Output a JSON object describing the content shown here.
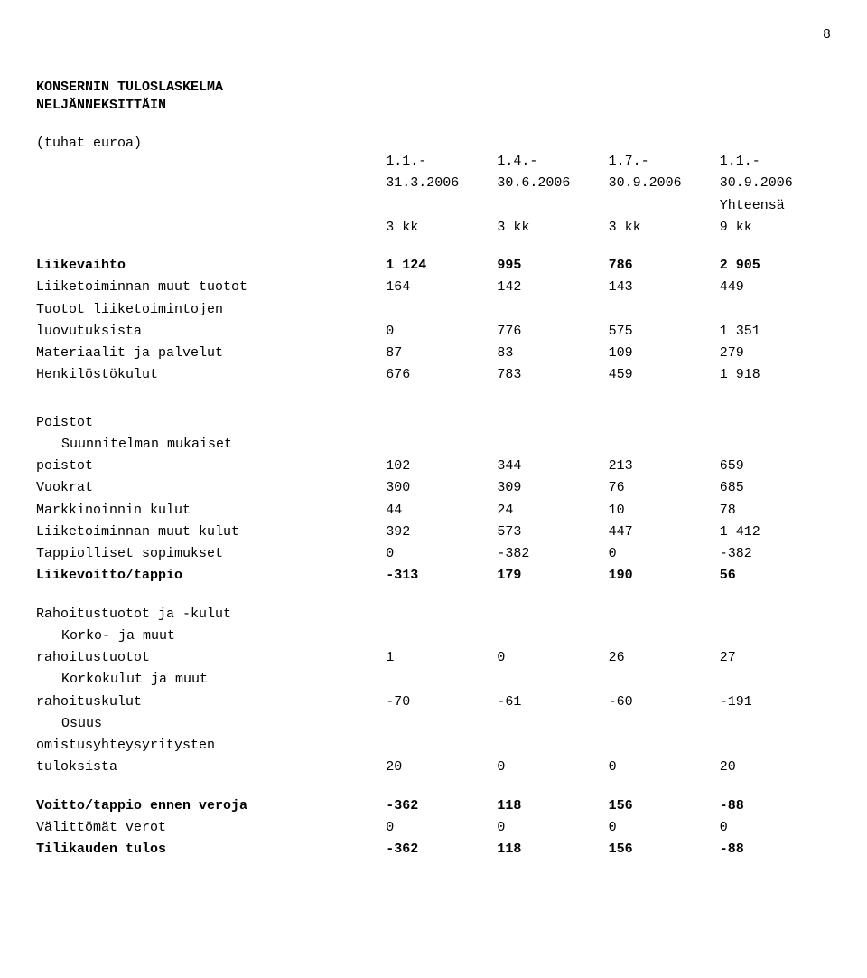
{
  "page_number": "8",
  "title_lines": [
    "KONSERNIN TULOSLASKELMA",
    "NELJÄNNEKSITTÄIN"
  ],
  "unit_label": "(tuhat euroa)",
  "header": {
    "periods_line1": [
      "1.1.-",
      "1.4.-",
      "1.7.-",
      "1.1.-"
    ],
    "periods_line2": [
      "31.3.2006",
      "30.6.2006",
      "30.9.2006",
      "30.9.2006"
    ],
    "total_label": "Yhteensä",
    "kk": [
      "3 kk",
      "3 kk",
      "3 kk",
      "9 kk"
    ]
  },
  "rows": {
    "liikevaihto": {
      "label": "Liikevaihto",
      "v": [
        "1 124",
        "995",
        "786",
        "2 905"
      ],
      "bold": true
    },
    "liiketoiminnan_tuotot": {
      "label": "Liiketoiminnan muut tuotot",
      "v": [
        "164",
        "142",
        "143",
        "449"
      ]
    },
    "tuotot_liiketoimintojen": {
      "label": "Tuotot liiketoimintojen"
    },
    "luovutuksista": {
      "label": "luovutuksista",
      "v": [
        "0",
        "776",
        "575",
        "1 351"
      ]
    },
    "materiaalit": {
      "label": "Materiaalit ja palvelut",
      "v": [
        "87",
        "83",
        "109",
        "279"
      ]
    },
    "henkilostokulut": {
      "label": "Henkilöstökulut",
      "v": [
        "676",
        "783",
        "459",
        "1 918"
      ]
    },
    "poistot": {
      "label": "Poistot"
    },
    "suunnitelman": {
      "label": "Suunnitelman mukaiset",
      "indent": true
    },
    "poistot_val": {
      "label": "poistot",
      "v": [
        "102",
        "344",
        "213",
        "659"
      ]
    },
    "vuokrat": {
      "label": "Vuokrat",
      "v": [
        "300",
        "309",
        "76",
        "685"
      ]
    },
    "markkinoinnin": {
      "label": "Markkinoinnin kulut",
      "v": [
        "44",
        "24",
        "10",
        "78"
      ]
    },
    "liiketoiminnan_kulut": {
      "label": "Liiketoiminnan muut kulut",
      "v": [
        "392",
        "573",
        "447",
        "1 412"
      ]
    },
    "tappiolliset": {
      "label": "Tappiolliset sopimukset",
      "v": [
        "0",
        "-382",
        "0",
        "-382"
      ]
    },
    "liikevoitto": {
      "label": "Liikevoitto/tappio",
      "v": [
        "-313",
        "179",
        "190",
        "56"
      ],
      "bold": true
    },
    "rahoitustuotot": {
      "label": "Rahoitustuotot ja -kulut"
    },
    "korko_ja_muut": {
      "label": "Korko- ja muut",
      "indent": true
    },
    "rahoitustuotot_val": {
      "label": "rahoitustuotot",
      "v": [
        "1",
        "0",
        "26",
        "27"
      ]
    },
    "korkokulut_ja_muut": {
      "label": "Korkokulut ja muut",
      "indent": true
    },
    "rahoituskulut": {
      "label": "rahoituskulut",
      "v": [
        "-70",
        "-61",
        "-60",
        "-191"
      ]
    },
    "osuus": {
      "label": "Osuus",
      "indent": true
    },
    "omistusyhteys": {
      "label": "omistusyhteysyritysten"
    },
    "tuloksista": {
      "label": "tuloksista",
      "v": [
        "20",
        "0",
        "0",
        "20"
      ]
    },
    "voitto_tappio": {
      "label": "Voitto/tappio ennen veroja",
      "v": [
        "-362",
        "118",
        "156",
        "-88"
      ],
      "bold": true
    },
    "valittomat": {
      "label": "Välittömät verot",
      "v": [
        "0",
        "0",
        "0",
        "0"
      ]
    },
    "tilikauden": {
      "label": "Tilikauden tulos",
      "v": [
        "-362",
        "118",
        "156",
        "-88"
      ],
      "bold": true
    }
  }
}
